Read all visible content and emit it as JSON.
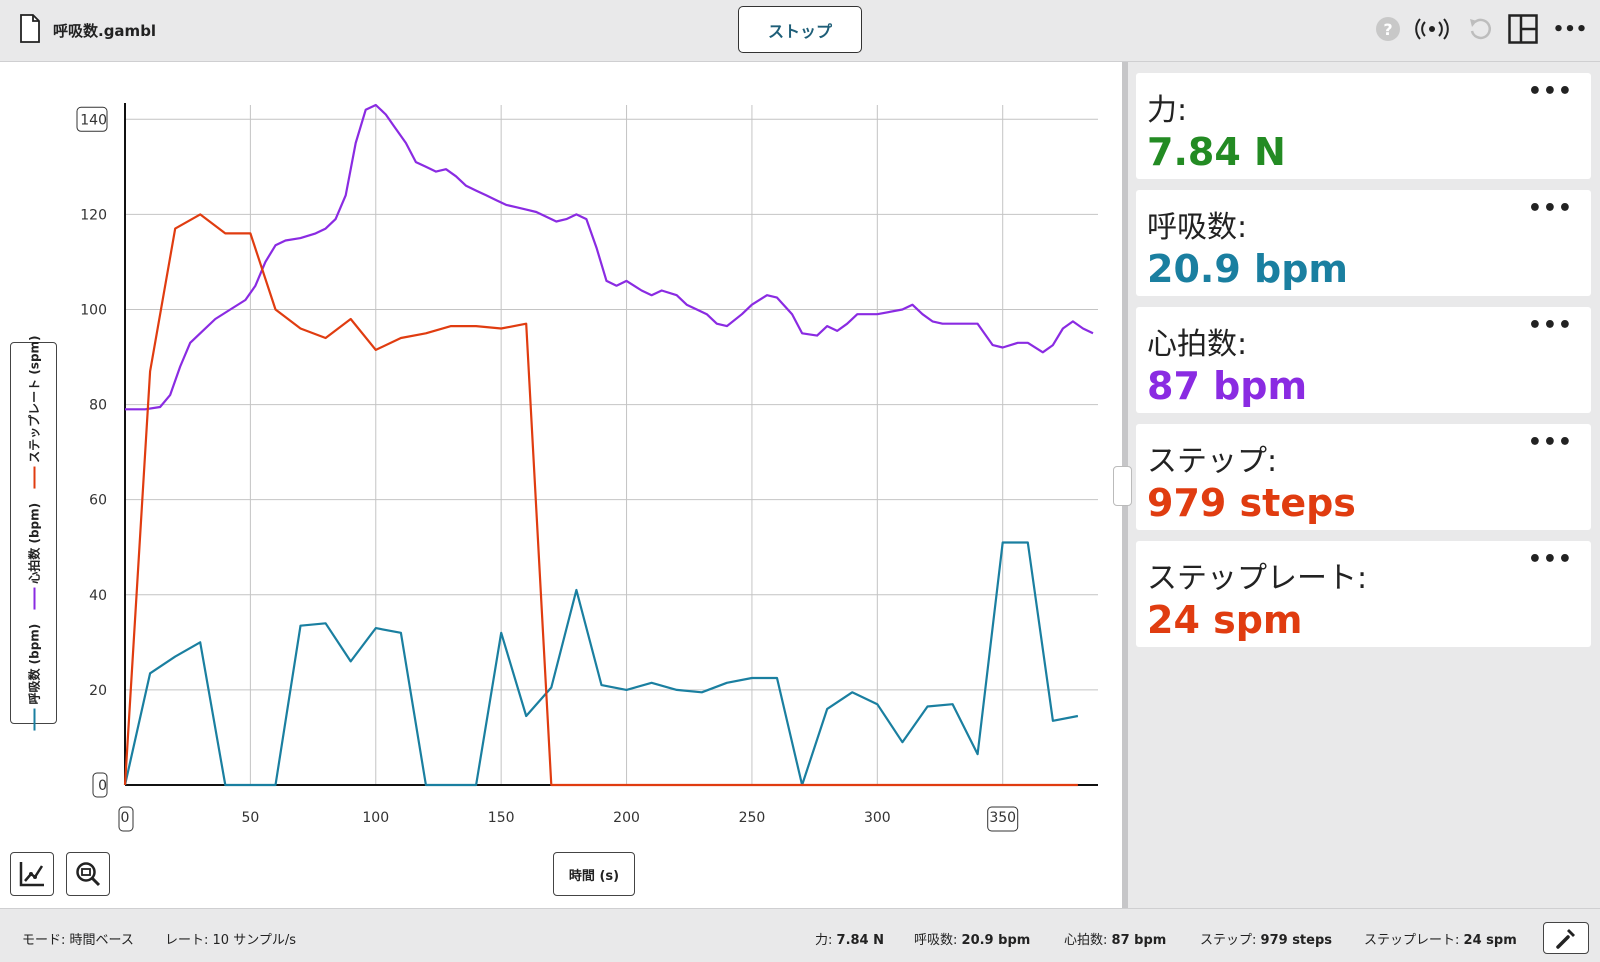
{
  "file": {
    "name": "呼吸数.gambl",
    "icon": "file-icon"
  },
  "toolbar": {
    "stop_label": "ストップ",
    "icons": [
      "help-icon",
      "wireless-icon",
      "undo-icon",
      "layout-icon",
      "more-icon"
    ]
  },
  "chart_data": {
    "type": "line",
    "xlabel": "時間 (s)",
    "xlim": [
      0,
      388
    ],
    "ylim": [
      0,
      143
    ],
    "x_ticks": [
      "0",
      "50",
      "100",
      "150",
      "200",
      "250",
      "300",
      "350"
    ],
    "y_ticks": [
      "0",
      "20",
      "40",
      "60",
      "80",
      "100",
      "120",
      "140"
    ],
    "grid": true,
    "legend_position": "left, vertical",
    "series": [
      {
        "name": "呼吸数 (bpm)",
        "color": "#1a7fa0",
        "x": [
          0,
          10,
          20,
          30,
          40,
          50,
          60,
          70,
          80,
          90,
          100,
          110,
          120,
          130,
          140,
          150,
          160,
          170,
          180,
          190,
          200,
          210,
          220,
          230,
          240,
          250,
          260,
          270,
          280,
          290,
          300,
          310,
          320,
          330,
          340,
          350,
          360,
          370,
          380
        ],
        "values": [
          0,
          23.5,
          27,
          30,
          0,
          0,
          0,
          33.5,
          34,
          26,
          33,
          32,
          0,
          0,
          0,
          32,
          14.5,
          20.5,
          41,
          21,
          20,
          21.5,
          20,
          19.5,
          21.5,
          22.5,
          22.5,
          0,
          16,
          19.5,
          17,
          9,
          16.5,
          17,
          6.5,
          51,
          51,
          13.5,
          14.5
        ]
      },
      {
        "name": "心拍数 (bpm)",
        "color": "#8a2be2",
        "x": [
          0,
          8,
          14,
          18,
          22,
          26,
          30,
          36,
          42,
          48,
          52,
          56,
          60,
          64,
          70,
          76,
          80,
          84,
          88,
          92,
          96,
          100,
          104,
          108,
          112,
          116,
          120,
          124,
          128,
          132,
          136,
          140,
          144,
          148,
          152,
          156,
          160,
          164,
          168,
          172,
          176,
          180,
          184,
          188,
          192,
          196,
          200,
          206,
          210,
          214,
          220,
          224,
          228,
          232,
          236,
          240,
          246,
          250,
          256,
          260,
          266,
          270,
          276,
          280,
          284,
          288,
          292,
          296,
          300,
          310,
          314,
          318,
          322,
          326,
          330,
          340,
          346,
          350,
          356,
          360,
          366,
          370,
          374,
          378,
          382,
          386
        ],
        "values": [
          79,
          79,
          79.5,
          82,
          88,
          93,
          95,
          98,
          100,
          102,
          105,
          110,
          113.5,
          114.5,
          115,
          116,
          117,
          119,
          124,
          135,
          142,
          143,
          141,
          138,
          135,
          131,
          130,
          129,
          129.5,
          128,
          126,
          125,
          124,
          123,
          122,
          121.5,
          121,
          120.5,
          119.5,
          118.5,
          119,
          120,
          119,
          113,
          106,
          105,
          106,
          104,
          103,
          104,
          103,
          101,
          100,
          99,
          97,
          96.5,
          99,
          101,
          103,
          102.5,
          99,
          95,
          94.5,
          96.5,
          95.5,
          97,
          99,
          99,
          99,
          100,
          101,
          99,
          97.5,
          97,
          97,
          97,
          92.5,
          92,
          93,
          93,
          91,
          92.5,
          96,
          97.5,
          96,
          95
        ]
      },
      {
        "name": "ステップレート (spm)",
        "color": "#e03c10",
        "x": [
          0,
          10,
          20,
          30,
          40,
          50,
          60,
          70,
          80,
          90,
          100,
          110,
          120,
          130,
          140,
          150,
          160,
          170,
          180,
          190,
          200,
          250,
          300,
          350,
          380
        ],
        "values": [
          0,
          87,
          117,
          120,
          116,
          116,
          100,
          96,
          94,
          98,
          91.5,
          94,
          95,
          96.5,
          96.5,
          96,
          97,
          0,
          0,
          0,
          0,
          0,
          0,
          0,
          0
        ]
      }
    ]
  },
  "chart_tools": {
    "xlabel_button": "時間 (s)",
    "icons": [
      "autoscale-icon",
      "zoom-icon"
    ]
  },
  "meters": [
    {
      "label": "力:",
      "value": "7.84 N",
      "color": "#238b23"
    },
    {
      "label": "呼吸数:",
      "value": "20.9 bpm",
      "color": "#1a7fa0"
    },
    {
      "label": "心拍数:",
      "value": "87 bpm",
      "color": "#8a2be2"
    },
    {
      "label": "ステップ:",
      "value": "979 steps",
      "color": "#e03c10"
    },
    {
      "label": "ステップレート:",
      "value": "24 spm",
      "color": "#e03c10"
    }
  ],
  "status": {
    "mode_label": "モード:",
    "mode_value": "時間ベース",
    "rate_label": "レート:",
    "rate_value": "10 サンプル/s",
    "readouts": [
      {
        "label": "力:",
        "value": "7.84 N"
      },
      {
        "label": "呼吸数:",
        "value": "20.9 bpm"
      },
      {
        "label": "心拍数:",
        "value": "87 bpm"
      },
      {
        "label": "ステップ:",
        "value": "979 steps"
      },
      {
        "label": "ステップレート:",
        "value": "24 spm"
      }
    ]
  },
  "more_glyph": "•••"
}
